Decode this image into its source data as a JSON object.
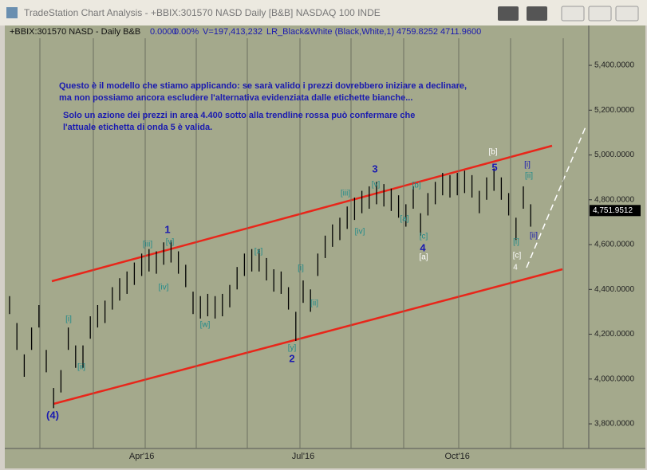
{
  "window_title": "TradeStation Chart Analysis - +BBIX:301570 NASD Daily [B&B] NASDAQ 100 INDE",
  "chart_data": {
    "type": "range",
    "info": [
      "+BBIX:301570 NASD - Daily  B&B",
      "0.0000",
      "0.00%",
      "V=197,413,232",
      "LR_Black&White (Black,White,1)",
      "4759.8252",
      "4711.9600"
    ],
    "notes": [
      "Questo è il modello che stiamo applicando: se sarà valido i prezzi dovrebbero iniziare a declinare,",
      "ma non possiamo ancora escludere l'alternativa evidenziata dalle etichette bianche...",
      "Solo un azione dei prezzi in area 4.400 sotto alla trendline rossa  può confermare che",
      "l'attuale etichetta di onda 5 è valida."
    ],
    "categories": [
      null,
      null,
      null,
      null,
      null,
      null,
      null,
      null,
      null,
      null,
      null,
      null,
      null,
      null,
      null,
      null,
      null,
      null,
      "Apr'16",
      null,
      null,
      null,
      null,
      null,
      null,
      null,
      null,
      null,
      null,
      null,
      null,
      null,
      null,
      null,
      null,
      null,
      null,
      null,
      null,
      null,
      "Jul'16",
      null,
      null,
      null,
      null,
      null,
      null,
      null,
      null,
      null,
      null,
      null,
      null,
      null,
      null,
      null,
      null,
      null,
      null,
      null,
      null,
      "Oct'16",
      null,
      null,
      null,
      null,
      null,
      null,
      null,
      null,
      null,
      null
    ],
    "high": [
      4370,
      4250,
      4110,
      4230,
      4330,
      4130,
      3960,
      4040,
      4230,
      4150,
      4150,
      4280,
      4330,
      4350,
      4410,
      4450,
      4480,
      4520,
      4560,
      4580,
      4570,
      4610,
      4620,
      4570,
      4510,
      4390,
      4370,
      4380,
      4370,
      4380,
      4420,
      4500,
      4560,
      4580,
      4580,
      4540,
      4490,
      4480,
      4410,
      4300,
      4440,
      4400,
      4560,
      4640,
      4690,
      4720,
      4770,
      4810,
      4840,
      4860,
      4880,
      4870,
      4850,
      4820,
      4780,
      4860,
      4740,
      4830,
      4880,
      4920,
      4910,
      4920,
      4930,
      4910,
      4840,
      4900,
      4940,
      4900,
      4830,
      4720,
      4860,
      4780
    ],
    "low": [
      4290,
      4130,
      4010,
      4130,
      4230,
      4030,
      3870,
      3940,
      4130,
      4050,
      4050,
      4180,
      4230,
      4250,
      4310,
      4350,
      4380,
      4420,
      4460,
      4480,
      4470,
      4510,
      4520,
      4470,
      4410,
      4290,
      4270,
      4280,
      4270,
      4280,
      4320,
      4400,
      4460,
      4480,
      4480,
      4440,
      4390,
      4380,
      4310,
      4170,
      4340,
      4300,
      4460,
      4540,
      4590,
      4620,
      4670,
      4710,
      4740,
      4760,
      4780,
      4770,
      4750,
      4720,
      4680,
      4760,
      4640,
      4730,
      4780,
      4820,
      4810,
      4820,
      4830,
      4810,
      4740,
      4800,
      4840,
      4800,
      4730,
      4620,
      4760,
      4680
    ],
    "bar_color": "#000000",
    "ylim": [
      3690,
      5521
    ],
    "yticks": [
      {
        "value": 3800,
        "label": "3,800.0000"
      },
      {
        "value": 4000,
        "label": "4,000.0000"
      },
      {
        "value": 4200,
        "label": "4,200.0000"
      },
      {
        "value": 4400,
        "label": "4,400.0000"
      },
      {
        "value": 4600,
        "label": "4,600.0000"
      },
      {
        "value": 4800,
        "label": "4,800.0000"
      },
      {
        "value": 5000,
        "label": "5,000.0000"
      },
      {
        "value": 5200,
        "label": "5,200.0000"
      },
      {
        "value": 5400,
        "label": "5,400.0000"
      }
    ],
    "last_price": {
      "value": 4751.9512,
      "label": "4,751.9512"
    },
    "annotations": [
      {
        "text": "1",
        "color": "#1a1ab0"
      },
      {
        "text": "[iii]",
        "color": "#1f8a8a"
      },
      {
        "text": "[v]",
        "color": "#1f8a8a"
      },
      {
        "text": "[iv]",
        "color": "#1f8a8a"
      },
      {
        "text": "[w]",
        "color": "#1f8a8a"
      },
      {
        "text": "[x]",
        "color": "#1f8a8a"
      },
      {
        "text": "[i]",
        "color": "#1f8a8a"
      },
      {
        "text": "[ii]",
        "color": "#1f8a8a"
      },
      {
        "text": "[y]",
        "color": "#1f8a8a"
      },
      {
        "text": "2",
        "color": "#1a1ab0"
      },
      {
        "text": "[i]",
        "color": "#1f8a8a"
      },
      {
        "text": "[ii]",
        "color": "#1f8a8a"
      },
      {
        "text": "(4)",
        "color": "#1a1ab0"
      },
      {
        "text": "3",
        "color": "#1a1ab0"
      },
      {
        "text": "[iii]",
        "color": "#1f8a8a"
      },
      {
        "text": "[v]",
        "color": "#1f8a8a"
      },
      {
        "text": "[iv]",
        "color": "#1f8a8a"
      },
      {
        "text": "[b]",
        "color": "#1f8a8a"
      },
      {
        "text": "[a]",
        "color": "#1f8a8a"
      },
      {
        "text": "[c]",
        "color": "#1f8a8a"
      },
      {
        "text": "4",
        "color": "#1a1ab0"
      },
      {
        "text": "[a]",
        "color": "#ffffff"
      },
      {
        "text": "[b]",
        "color": "#ffffff"
      },
      {
        "text": "5",
        "color": "#1a1ab0"
      },
      {
        "text": "[i]",
        "color": "#1a1ab0"
      },
      {
        "text": "[ii]",
        "color": "#1f8a8a"
      },
      {
        "text": "[i]",
        "color": "#1f8a8a"
      },
      {
        "text": "[c]",
        "color": "#ffffff"
      },
      {
        "text": "4",
        "color": "#ffffff"
      },
      {
        "text": "[ii]",
        "color": "#1a1ab0"
      }
    ]
  }
}
